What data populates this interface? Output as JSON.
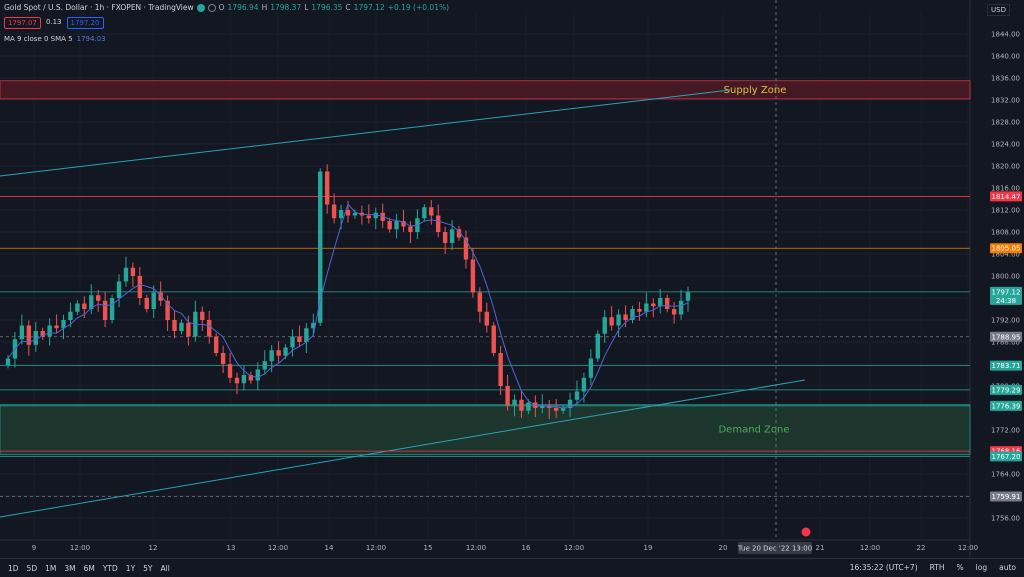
{
  "header": {
    "symbol": "Gold Spot / U.S. Dollar · 1h · FXOPEN · TradingView",
    "o_label": "O",
    "o": "1796.94",
    "h_label": "H",
    "h": "1798.37",
    "l_label": "L",
    "l": "1796.35",
    "c_label": "C",
    "c": "1797.12",
    "change": "+0.19 (+0.01%)",
    "sell": "1797.07",
    "spread": "0.13",
    "buy": "1797.20"
  },
  "indicator": {
    "label": "MA 9 close 0 SMA 5",
    "value": "1794.03"
  },
  "currency": "USD",
  "colors": {
    "up": "#26a69a",
    "down": "#ef5350",
    "ma": "#4e66d6",
    "bg": "#131722",
    "trend": "#2aa3b6",
    "supply_fill": "#4a1a24",
    "demand_fill": "#1d3a30"
  },
  "chart_data": {
    "type": "candlestick",
    "ylim": [
      1752,
      1848
    ],
    "y_ticks": [
      "1844.00",
      "1840.00",
      "1836.00",
      "1832.00",
      "1828.00",
      "1824.00",
      "1820.00",
      "1816.00",
      "1812.00",
      "1808.00",
      "1804.00",
      "1800.00",
      "1796.00",
      "1792.00",
      "1788.00",
      "1784.00",
      "1780.00",
      "1776.00",
      "1772.00",
      "1768.00",
      "1764.00",
      "1760.00",
      "1756.00"
    ],
    "x_ticks": [
      "9",
      "12:00",
      "12",
      "13",
      "12:00",
      "14",
      "12:00",
      "15",
      "12:00",
      "16",
      "12:00",
      "19",
      "20",
      "21",
      "12:00",
      "22",
      "12:00"
    ],
    "closes": [
      1785.0,
      1788.5,
      1791.0,
      1787.5,
      1790.0,
      1789.0,
      1791.0,
      1790.5,
      1792.0,
      1793.5,
      1795.0,
      1794.0,
      1796.5,
      1795.5,
      1792.0,
      1796.0,
      1799.0,
      1801.5,
      1800.0,
      1796.0,
      1794.0,
      1797.0,
      1795.5,
      1792.0,
      1790.0,
      1791.5,
      1789.0,
      1793.5,
      1792.0,
      1789.0,
      1786.0,
      1784.0,
      1781.5,
      1780.5,
      1782.0,
      1781.0,
      1783.0,
      1784.5,
      1786.5,
      1785.5,
      1787.0,
      1789.0,
      1788.0,
      1790.5,
      1791.5,
      1819.0,
      1813.0,
      1810.5,
      1812.0,
      1811.0,
      1811.5,
      1811.0,
      1810.5,
      1811.5,
      1810.0,
      1808.5,
      1810.0,
      1809.0,
      1808.0,
      1810.5,
      1812.5,
      1811.0,
      1808.0,
      1806.0,
      1808.5,
      1807.0,
      1803.0,
      1797.0,
      1793.5,
      1791.0,
      1786.0,
      1780.0,
      1776.5,
      1777.5,
      1775.5,
      1777.0,
      1776.0,
      1776.5,
      1776.0,
      1775.5,
      1776.0,
      1777.5,
      1779.0,
      1781.5,
      1785.0,
      1789.5,
      1792.5,
      1791.0,
      1793.0,
      1792.0,
      1794.0,
      1793.5,
      1795.0,
      1794.5,
      1796.0,
      1794.0,
      1793.0,
      1795.5,
      1797.12
    ],
    "price_lines": [
      {
        "label": "1814.47",
        "value": 1814.47,
        "color": "#f23645"
      },
      {
        "label": "1805.05",
        "value": 1805.05,
        "color": "#f57c00"
      },
      {
        "label": "1797.12",
        "value": 1797.12,
        "color": "#26a69a",
        "sub": "24:38"
      },
      {
        "label": "1788.95",
        "value": 1788.95,
        "color": "#787b86"
      },
      {
        "label": "1783.71",
        "value": 1783.71,
        "color": "#26a69a"
      },
      {
        "label": "1779.29",
        "value": 1779.29,
        "color": "#26a69a"
      },
      {
        "label": "1776.39",
        "value": 1776.39,
        "color": "#26a69a"
      },
      {
        "label": "1768.16",
        "value": 1768.16,
        "color": "#f23645"
      },
      {
        "label": "1767.20",
        "value": 1767.2,
        "color": "#26a69a"
      },
      {
        "label": "1759.91",
        "value": 1759.91,
        "color": "#787b86"
      }
    ],
    "zones": [
      {
        "label": "Supply Zone",
        "top": 1835.5,
        "bottom": 1832.2,
        "text_color": "#e0c040"
      },
      {
        "label": "Demand Zone",
        "top": 1776.6,
        "bottom": 1767.5,
        "text_color": "#4caf50"
      }
    ],
    "crosshair_label": "Tue 20 Dec '22   13:00"
  },
  "timeframes": [
    "1D",
    "5D",
    "1M",
    "3M",
    "6M",
    "YTD",
    "1Y",
    "5Y",
    "All"
  ],
  "status": {
    "time": "16:35:22 (UTC+7)",
    "session": "RTH",
    "pct": "%",
    "log": "log",
    "auto": "auto"
  }
}
